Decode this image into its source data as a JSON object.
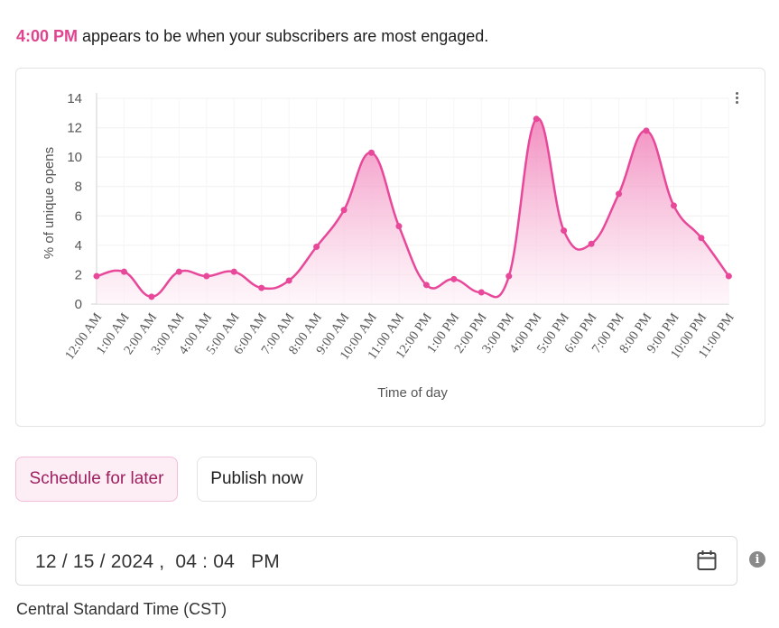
{
  "headline": {
    "highlight": "4:00 PM",
    "rest": " appears to be when your subscribers are most engaged."
  },
  "chart_data": {
    "type": "area",
    "title": "",
    "xlabel": "Time of day",
    "ylabel": "% of unique opens",
    "ylim": [
      0,
      14
    ],
    "yticks": [
      0,
      2,
      4,
      6,
      8,
      10,
      12,
      14
    ],
    "grid": true,
    "categories": [
      "12:00 AM",
      "1:00 AM",
      "2:00 AM",
      "3:00 AM",
      "4:00 AM",
      "5:00 AM",
      "6:00 AM",
      "7:00 AM",
      "8:00 AM",
      "9:00 AM",
      "10:00 AM",
      "11:00 AM",
      "12:00 PM",
      "1:00 PM",
      "2:00 PM",
      "3:00 PM",
      "4:00 PM",
      "5:00 PM",
      "6:00 PM",
      "7:00 PM",
      "8:00 PM",
      "9:00 PM",
      "10:00 PM",
      "11:00 PM"
    ],
    "series": [
      {
        "name": "% of unique opens",
        "values": [
          1.9,
          2.2,
          0.5,
          2.2,
          1.9,
          2.2,
          1.1,
          1.6,
          3.9,
          6.4,
          10.3,
          5.3,
          1.3,
          1.7,
          0.8,
          1.9,
          12.6,
          5.0,
          4.1,
          7.5,
          11.8,
          6.7,
          4.5,
          1.9
        ]
      }
    ],
    "colors": {
      "line": "#e8489a",
      "fill_top": "#f07ab5",
      "fill_bottom": "#fdf1f7",
      "grid": "#f0f0f0",
      "axis": "#d0d0d0"
    }
  },
  "menu": {
    "icon": "kebab-menu-icon"
  },
  "actions": {
    "schedule_label": "Schedule for later",
    "publish_label": "Publish now"
  },
  "datetime": {
    "value": "12 / 15 / 2024 ,  04 : 04   PM",
    "calendar_icon": "calendar-icon",
    "info_icon": "info-icon",
    "info_glyph": "i"
  },
  "timezone": "Central Standard Time (CST)"
}
